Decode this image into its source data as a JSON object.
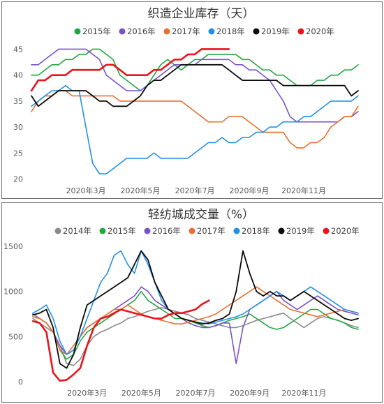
{
  "chart_data": [
    {
      "type": "line",
      "title": "织造企业库存（天）",
      "ylim": [
        19,
        46
      ],
      "yticks": [
        20,
        25,
        30,
        35,
        40,
        45
      ],
      "x_ticks": [
        "2020年3月",
        "2020年5月",
        "2020年7月",
        "2020年9月",
        "2020年11月"
      ],
      "x_tick_weeks": [
        8,
        16,
        24,
        32,
        40
      ],
      "x_range_weeks": [
        0,
        48
      ],
      "grid": false,
      "legend_position": "top",
      "series": [
        {
          "name": "2015年",
          "color": "#21a73f",
          "width": 1.6,
          "values": [
            40,
            40,
            41,
            42,
            42,
            43,
            43,
            44,
            44,
            45,
            45,
            44,
            43,
            40,
            39,
            38,
            37,
            38,
            40,
            42,
            43,
            42,
            41,
            42,
            43,
            43,
            44,
            44,
            44,
            44,
            44,
            43,
            43,
            42,
            41,
            41,
            40,
            40,
            39,
            38,
            38,
            38,
            39,
            39,
            40,
            40,
            41,
            41,
            42
          ]
        },
        {
          "name": "2016年",
          "color": "#7a52c7",
          "width": 1.6,
          "values": [
            42,
            42,
            43,
            44,
            45,
            45,
            45,
            45,
            45,
            44,
            43,
            40,
            39,
            38,
            37,
            37,
            37,
            38,
            39,
            40,
            41,
            42,
            42,
            42,
            42,
            43,
            43,
            43,
            43,
            43,
            42,
            42,
            41,
            41,
            40,
            39,
            37,
            35,
            32,
            31,
            31,
            31,
            31,
            31,
            31,
            31,
            32,
            32,
            33
          ]
        },
        {
          "name": "2017年",
          "color": "#e86f30",
          "width": 1.6,
          "values": [
            33,
            35,
            36,
            36,
            37,
            37,
            36,
            36,
            36,
            36,
            36,
            36,
            36,
            35,
            35,
            35,
            35,
            35,
            35,
            35,
            35,
            35,
            35,
            34,
            33,
            32,
            31,
            31,
            31,
            32,
            32,
            32,
            31,
            30,
            29,
            29,
            29,
            29,
            27,
            26,
            26,
            27,
            27,
            28,
            30,
            31,
            32,
            32,
            34
          ]
        },
        {
          "name": "2018年",
          "color": "#2390e5",
          "width": 1.6,
          "values": [
            34,
            35,
            36,
            37,
            37,
            38,
            37,
            37,
            30,
            23,
            21,
            21,
            22,
            23,
            24,
            24,
            24,
            24,
            25,
            24,
            24,
            24,
            24,
            24,
            25,
            26,
            27,
            27,
            28,
            27,
            27,
            28,
            28,
            29,
            29,
            30,
            30,
            31,
            31,
            31,
            32,
            32,
            33,
            34,
            35,
            35,
            35,
            35,
            36
          ]
        },
        {
          "name": "2019年",
          "color": "#0a0a0a",
          "width": 1.8,
          "values": [
            36,
            34,
            35,
            36,
            37,
            37,
            37,
            37,
            37,
            36,
            35,
            35,
            34,
            34,
            34,
            35,
            36,
            38,
            39,
            39,
            40,
            41,
            42,
            42,
            42,
            42,
            42,
            42,
            42,
            41,
            40,
            39,
            39,
            39,
            39,
            39,
            39,
            38,
            38,
            38,
            38,
            38,
            38,
            38,
            38,
            38,
            38,
            36,
            37
          ]
        },
        {
          "name": "2020年",
          "color": "#e8151b",
          "width": 2.6,
          "values": [
            37,
            39,
            39,
            40,
            40,
            40,
            41,
            41,
            41,
            41,
            41,
            42,
            42,
            41,
            40,
            40,
            40,
            40,
            41,
            41,
            42,
            43,
            43,
            44,
            44,
            45,
            45,
            45,
            45,
            45,
            null,
            null,
            null,
            null,
            null,
            null,
            null,
            null,
            null,
            null,
            null,
            null,
            null,
            null,
            null,
            null,
            null,
            null,
            null
          ]
        }
      ]
    },
    {
      "type": "line",
      "title": "轻纺城成交量（%）",
      "ylim": [
        0,
        1500
      ],
      "yticks": [
        0,
        500,
        1000,
        1500
      ],
      "x_ticks": [
        "2020年3月",
        "2020年5月",
        "2020年7月",
        "2020年9月",
        "2020年11月"
      ],
      "x_tick_weeks": [
        8,
        16,
        24,
        32,
        40
      ],
      "x_range_weeks": [
        0,
        48
      ],
      "grid": false,
      "legend_position": "top",
      "series": [
        {
          "name": "2014年",
          "color": "#8a8a8a",
          "width": 1.6,
          "values": [
            700,
            650,
            600,
            550,
            400,
            200,
            180,
            250,
            400,
            500,
            550,
            580,
            620,
            650,
            700,
            720,
            750,
            780,
            800,
            820,
            800,
            780,
            760,
            740,
            700,
            680,
            660,
            640,
            620,
            600,
            600,
            620,
            650,
            680,
            700,
            720,
            740,
            760,
            700,
            650,
            600,
            650,
            700,
            720,
            700,
            680,
            650,
            620,
            600
          ]
        },
        {
          "name": "2015年",
          "color": "#21a73f",
          "width": 1.6,
          "values": [
            720,
            700,
            650,
            550,
            350,
            250,
            300,
            450,
            550,
            600,
            650,
            700,
            750,
            800,
            850,
            900,
            1000,
            900,
            850,
            800,
            750,
            700,
            700,
            680,
            650,
            620,
            600,
            620,
            650,
            680,
            700,
            720,
            750,
            700,
            650,
            600,
            580,
            600,
            650,
            700,
            750,
            800,
            800,
            750,
            700,
            680,
            650,
            600,
            580
          ]
        },
        {
          "name": "2016年",
          "color": "#7a52c7",
          "width": 1.6,
          "values": [
            750,
            700,
            650,
            550,
            400,
            300,
            350,
            500,
            600,
            650,
            700,
            750,
            800,
            850,
            900,
            950,
            1050,
            1000,
            900,
            850,
            800,
            750,
            700,
            650,
            620,
            600,
            600,
            620,
            650,
            650,
            200,
            600,
            800,
            850,
            900,
            950,
            1000,
            900,
            850,
            800,
            850,
            900,
            950,
            900,
            850,
            800,
            780,
            760,
            740
          ]
        },
        {
          "name": "2017年",
          "color": "#e86f30",
          "width": 1.6,
          "values": [
            720,
            700,
            650,
            550,
            350,
            300,
            400,
            500,
            600,
            650,
            700,
            750,
            800,
            800,
            850,
            800,
            750,
            720,
            700,
            680,
            660,
            640,
            640,
            660,
            680,
            700,
            720,
            750,
            800,
            850,
            900,
            950,
            1000,
            1050,
            1000,
            950,
            900,
            850,
            800,
            780,
            760,
            740,
            720,
            740,
            760,
            780,
            800,
            780,
            760
          ]
        },
        {
          "name": "2018年",
          "color": "#2390e5",
          "width": 1.6,
          "values": [
            760,
            800,
            850,
            700,
            450,
            300,
            350,
            500,
            700,
            900,
            1100,
            1200,
            1400,
            1450,
            1300,
            1200,
            1450,
            1300,
            1100,
            900,
            800,
            750,
            700,
            680,
            660,
            650,
            640,
            660,
            680,
            700,
            720,
            750,
            800,
            850,
            900,
            950,
            1000,
            950,
            900,
            950,
            1000,
            1050,
            1000,
            950,
            900,
            850,
            800,
            780,
            760
          ]
        },
        {
          "name": "2019年",
          "color": "#0a0a0a",
          "width": 1.8,
          "values": [
            740,
            760,
            800,
            600,
            200,
            150,
            300,
            600,
            850,
            900,
            950,
            1000,
            1050,
            1100,
            1150,
            1300,
            1450,
            1350,
            1100,
            950,
            800,
            750,
            700,
            680,
            660,
            640,
            650,
            680,
            700,
            750,
            1000,
            1450,
            1200,
            1000,
            950,
            1000,
            950,
            950,
            900,
            950,
            1000,
            950,
            900,
            850,
            800,
            750,
            700,
            680,
            700
          ]
        },
        {
          "name": "2020年",
          "color": "#e8151b",
          "width": 2.6,
          "values": [
            670,
            650,
            550,
            100,
            10,
            20,
            80,
            150,
            400,
            600,
            700,
            720,
            760,
            800,
            780,
            760,
            740,
            720,
            700,
            700,
            740,
            760,
            760,
            780,
            800,
            860,
            900,
            null,
            null,
            null,
            null,
            null,
            null,
            null,
            null,
            null,
            null,
            null,
            null,
            null,
            null,
            null,
            null,
            null,
            null,
            null,
            null,
            null,
            null
          ]
        }
      ]
    }
  ]
}
